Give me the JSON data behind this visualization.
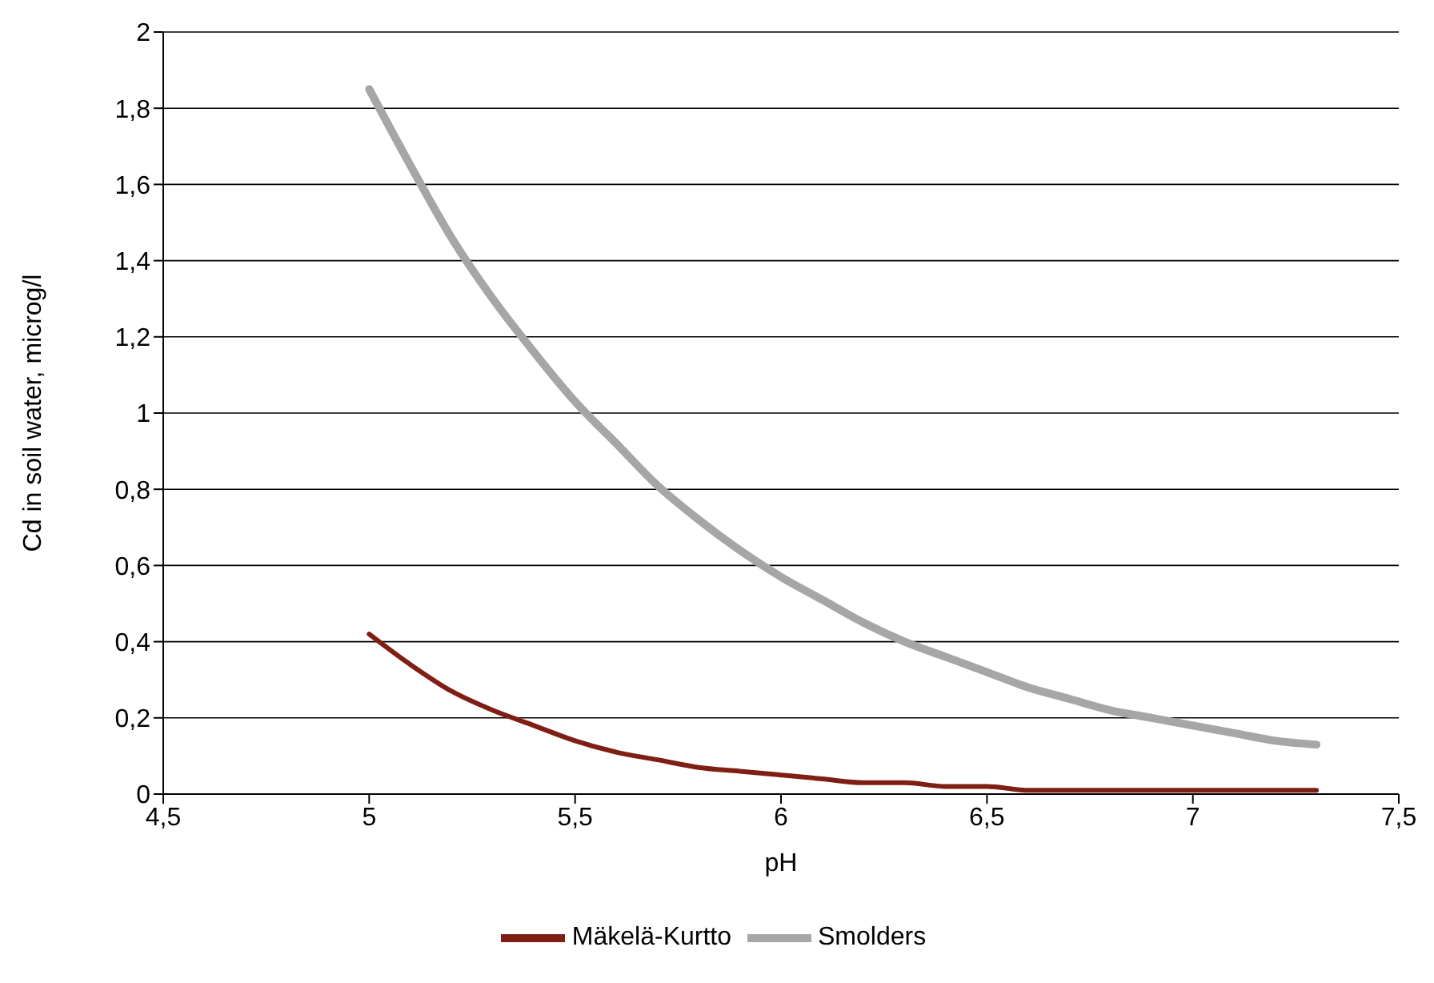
{
  "chart_data": {
    "type": "line",
    "xlabel": "pH",
    "ylabel": "Cd in soil water, microg/l",
    "x": [
      5.0,
      5.1,
      5.2,
      5.3,
      5.4,
      5.5,
      5.6,
      5.7,
      5.8,
      5.9,
      6.0,
      6.1,
      6.2,
      6.3,
      6.4,
      6.5,
      6.6,
      6.7,
      6.8,
      6.9,
      7.0,
      7.1,
      7.2,
      7.3
    ],
    "series": [
      {
        "name": "Mäkelä-Kurtto",
        "color": "#7f1f14",
        "values": [
          0.42,
          0.34,
          0.27,
          0.22,
          0.18,
          0.14,
          0.11,
          0.09,
          0.07,
          0.06,
          0.05,
          0.04,
          0.03,
          0.03,
          0.02,
          0.02,
          0.01,
          0.01,
          0.01,
          0.01,
          0.01,
          0.01,
          0.01,
          0.01
        ]
      },
      {
        "name": "Smolders",
        "color": "#a6a6a6",
        "values": [
          1.85,
          1.65,
          1.46,
          1.3,
          1.16,
          1.03,
          0.92,
          0.81,
          0.72,
          0.64,
          0.57,
          0.51,
          0.45,
          0.4,
          0.36,
          0.32,
          0.28,
          0.25,
          0.22,
          0.2,
          0.18,
          0.16,
          0.14,
          0.13
        ]
      }
    ],
    "xlim": [
      4.5,
      7.5
    ],
    "xticks": [
      {
        "value": 4.5,
        "label": "4,5"
      },
      5,
      {
        "value": 5.5,
        "label": "5,5"
      },
      6,
      {
        "value": 6.5,
        "label": "6,5"
      },
      7,
      {
        "value": 7.5,
        "label": "7,5"
      }
    ],
    "ylim": [
      0,
      2
    ],
    "yticks": [
      0,
      {
        "value": 0.2,
        "label": "0,2"
      },
      {
        "value": 0.4,
        "label": "0,4"
      },
      {
        "value": 0.6,
        "label": "0,6"
      },
      {
        "value": 0.8,
        "label": "0,8"
      },
      1,
      {
        "value": 1.2,
        "label": "1,2"
      },
      {
        "value": 1.4,
        "label": "1,4"
      },
      {
        "value": 1.6,
        "label": "1,6"
      },
      {
        "value": 1.8,
        "label": "1,8"
      },
      2
    ],
    "grid": "y",
    "legend": "bottom",
    "marker": "none",
    "line_style": "solid"
  }
}
